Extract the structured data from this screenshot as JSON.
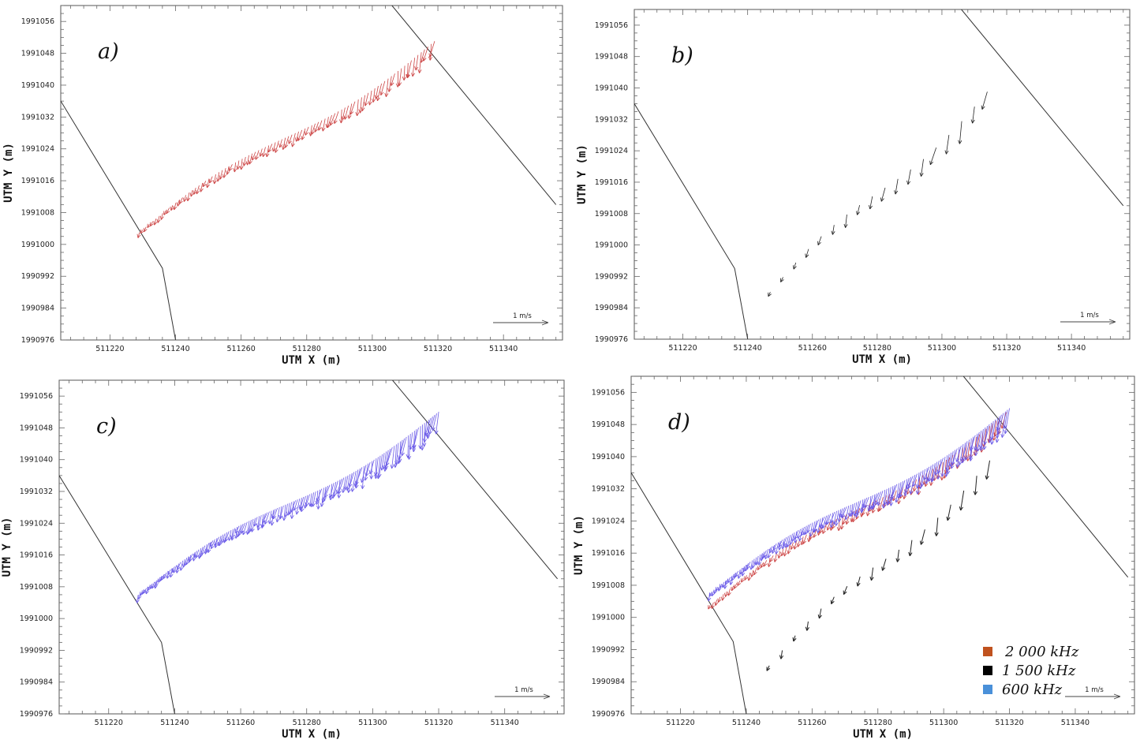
{
  "chart_data": [
    {
      "type": "vector",
      "panel_label": "a)",
      "xlabel": "UTM X (m)",
      "ylabel": "UTM Y (m)",
      "xlim": [
        511205,
        511358
      ],
      "ylim": [
        1990976,
        1991060
      ],
      "x_ticks": [
        511220,
        511240,
        511260,
        511280,
        511300,
        511320,
        511340
      ],
      "y_ticks": [
        1990976,
        1990984,
        1990992,
        1991000,
        1991008,
        1991016,
        1991024,
        1991032,
        1991040,
        1991048,
        1991056
      ],
      "reference_vector": "1 m/s",
      "grid": false,
      "series": [
        {
          "color": "#cc4444",
          "track_start": [
            511229,
            1991003
          ],
          "track_end": [
            511319,
            1991051
          ],
          "vector_count": 90,
          "mean_speed_ms": 0.6
        }
      ],
      "boundary_lines": [
        {
          "points": [
            [
              511205,
              1991036
            ],
            [
              511236,
              1990994
            ],
            [
              511240,
              1990976
            ]
          ]
        },
        {
          "points": [
            [
              511306,
              1991060
            ],
            [
              511356,
              1991010
            ]
          ]
        }
      ]
    },
    {
      "type": "vector",
      "panel_label": "b)",
      "xlabel": "UTM X (m)",
      "ylabel": "UTM Y (m)",
      "xlim": [
        511205,
        511358
      ],
      "ylim": [
        1990976,
        1991060
      ],
      "x_ticks": [
        511220,
        511240,
        511260,
        511280,
        511300,
        511320,
        511340
      ],
      "y_ticks": [
        1990976,
        1990984,
        1990992,
        1991000,
        1991008,
        1991016,
        1991024,
        1991032,
        1991040,
        1991048,
        1991056
      ],
      "reference_vector": "1 m/s",
      "grid": false,
      "series": [
        {
          "color": "#222222",
          "track_start": [
            511247,
            1990988
          ],
          "track_end": [
            511314,
            1991039
          ],
          "vector_count": 18,
          "mean_speed_ms": 0.7
        }
      ],
      "boundary_lines": [
        {
          "points": [
            [
              511205,
              1991036
            ],
            [
              511236,
              1990994
            ],
            [
              511240,
              1990976
            ]
          ]
        },
        {
          "points": [
            [
              511306,
              1991060
            ],
            [
              511356,
              1991010
            ]
          ]
        }
      ]
    },
    {
      "type": "vector",
      "panel_label": "c)",
      "xlabel": "UTM X (m)",
      "ylabel": "UTM Y (m)",
      "xlim": [
        511205,
        511358
      ],
      "ylim": [
        1990976,
        1991060
      ],
      "x_ticks": [
        511220,
        511240,
        511260,
        511280,
        511300,
        511320,
        511340
      ],
      "y_ticks": [
        1990976,
        1990984,
        1990992,
        1991000,
        1991008,
        1991016,
        1991024,
        1991032,
        1991040,
        1991048,
        1991056
      ],
      "reference_vector": "1 m/s",
      "grid": false,
      "series": [
        {
          "color": "#6a5ae8",
          "track_start": [
            511229,
            1991006
          ],
          "track_end": [
            511320,
            1991052
          ],
          "vector_count": 150,
          "mean_speed_ms": 0.75
        }
      ],
      "boundary_lines": [
        {
          "points": [
            [
              511205,
              1991036
            ],
            [
              511236,
              1990994
            ],
            [
              511240,
              1990976
            ]
          ]
        },
        {
          "points": [
            [
              511306,
              1991060
            ],
            [
              511356,
              1991010
            ]
          ]
        }
      ]
    },
    {
      "type": "vector",
      "panel_label": "d)",
      "xlabel": "UTM X (m)",
      "ylabel": "UTM Y (m)",
      "xlim": [
        511205,
        511358
      ],
      "ylim": [
        1990976,
        1991060
      ],
      "x_ticks": [
        511220,
        511240,
        511260,
        511280,
        511300,
        511320,
        511340
      ],
      "y_ticks": [
        1990976,
        1990984,
        1990992,
        1991000,
        1991008,
        1991016,
        1991024,
        1991032,
        1991040,
        1991048,
        1991056
      ],
      "reference_vector": "1 m/s",
      "grid": false,
      "legend_position": "bottom-right",
      "series": [
        {
          "name": "2 000 kHz",
          "legend_color": "#c0521e",
          "color": "#cc4444",
          "track_start": [
            511229,
            1991003
          ],
          "track_end": [
            511319,
            1991051
          ],
          "vector_count": 90,
          "mean_speed_ms": 0.6
        },
        {
          "name": "1 500 kHz",
          "legend_color": "#000000",
          "color": "#222222",
          "track_start": [
            511247,
            1990988
          ],
          "track_end": [
            511314,
            1991039
          ],
          "vector_count": 18,
          "mean_speed_ms": 0.7
        },
        {
          "name": "600 kHz",
          "legend_color": "#4a90d9",
          "color": "#6a5ae8",
          "track_start": [
            511229,
            1991006
          ],
          "track_end": [
            511320,
            1991052
          ],
          "vector_count": 150,
          "mean_speed_ms": 0.75
        }
      ],
      "boundary_lines": [
        {
          "points": [
            [
              511205,
              1991036
            ],
            [
              511236,
              1990994
            ],
            [
              511240,
              1990976
            ]
          ]
        },
        {
          "points": [
            [
              511306,
              1991060
            ],
            [
              511356,
              1991010
            ]
          ]
        }
      ]
    }
  ]
}
